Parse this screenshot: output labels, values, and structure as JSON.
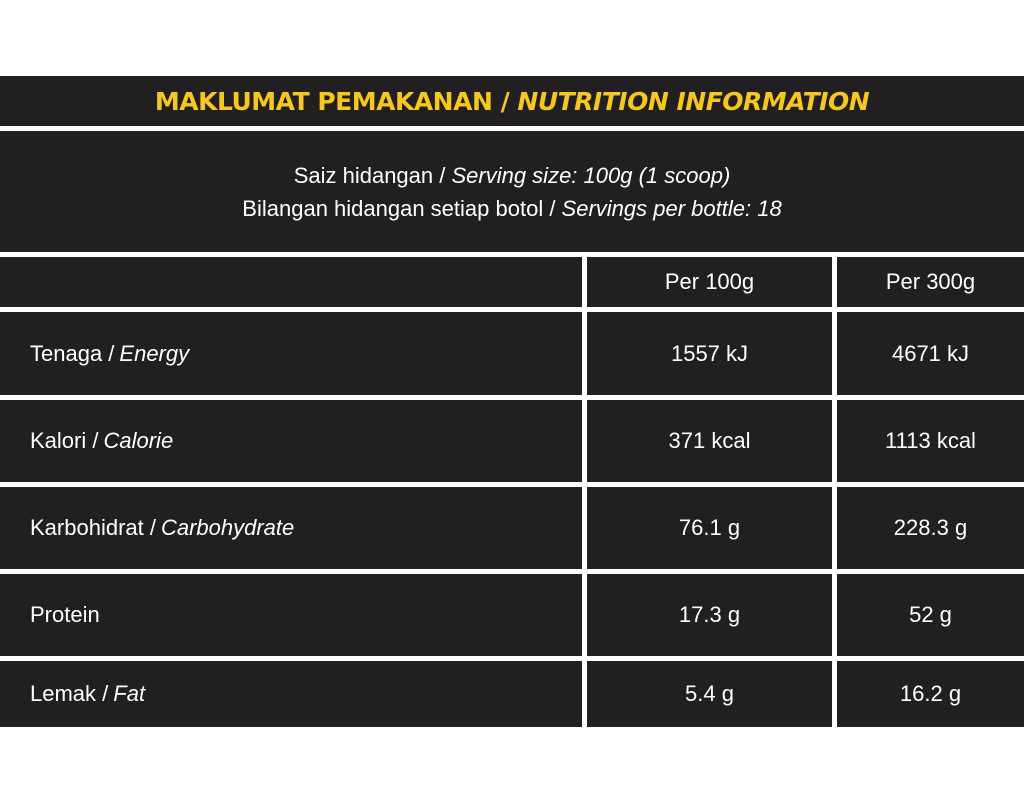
{
  "title": {
    "ms": "MAKLUMAT PEMAKANAN / ",
    "en": "NUTRITION INFORMATION"
  },
  "serving": {
    "line1_ms": "Saiz hidangan / ",
    "line1_en": "Serving size: 100g (1 scoop)",
    "line2_ms": "Bilangan hidangan setiap botol / ",
    "line2_en": "Servings per bottle: 18"
  },
  "table": {
    "headers": [
      "",
      "Per 100g",
      "Per 300g"
    ],
    "rows": [
      {
        "label_ms": "Tenaga / ",
        "label_en": "Energy",
        "per100": "1557 kJ",
        "per300": "4671 kJ"
      },
      {
        "label_ms": "Kalori / ",
        "label_en": "Calorie",
        "per100": "371 kcal",
        "per300": "1113 kcal"
      },
      {
        "label_ms": "Karbohidrat / ",
        "label_en": "Carbohydrate",
        "per100": "76.1 g",
        "per300": "228.3 g"
      },
      {
        "label_ms": "Protein",
        "label_en": "",
        "per100": "17.3 g",
        "per300": "52 g"
      },
      {
        "label_ms": "Lemak / ",
        "label_en": "Fat",
        "per100": "5.4 g",
        "per300": "16.2 g"
      }
    ]
  },
  "colors": {
    "background": "#221f20",
    "title": "#f6c71e",
    "text": "#ffffff",
    "divider": "#ffffff"
  }
}
